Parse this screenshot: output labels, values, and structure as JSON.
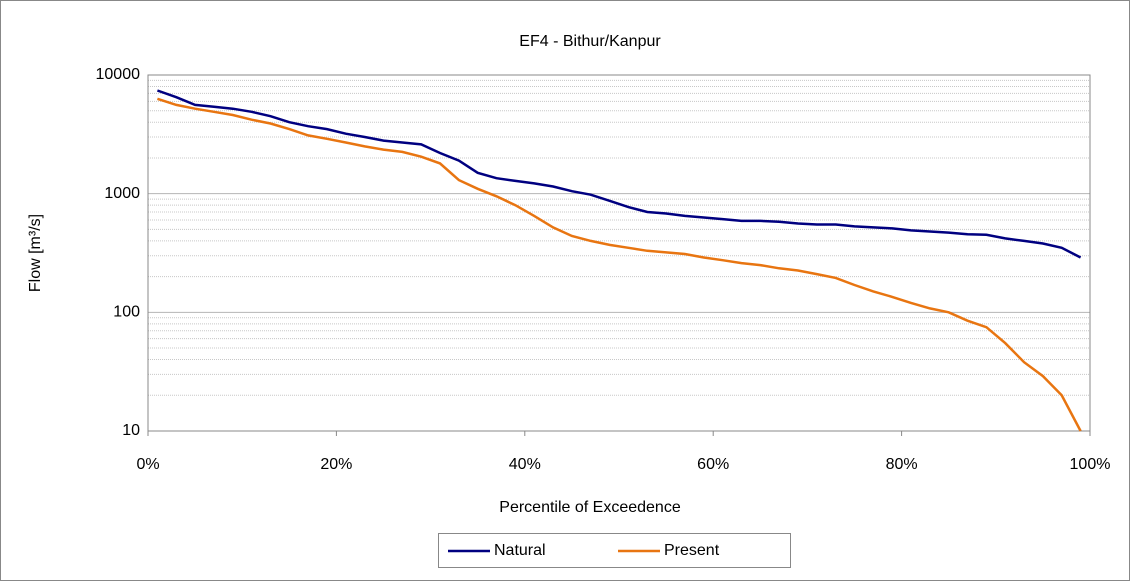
{
  "chart_data": {
    "type": "line",
    "title": "EF4 - Bithur/Kanpur",
    "x_label": "Percentile of Exceedence",
    "y_label": "Flow [m³/s]",
    "x": [
      1,
      3,
      5,
      7,
      9,
      11,
      13,
      15,
      17,
      19,
      21,
      23,
      25,
      27,
      29,
      31,
      33,
      35,
      37,
      39,
      41,
      43,
      45,
      47,
      49,
      51,
      53,
      55,
      57,
      59,
      61,
      63,
      65,
      67,
      69,
      71,
      73,
      75,
      77,
      79,
      81,
      83,
      85,
      87,
      89,
      91,
      93,
      95,
      97,
      99
    ],
    "series": [
      {
        "name": "Natural",
        "color": "#000080",
        "values": [
          7400,
          6500,
          5600,
          5400,
          5200,
          4900,
          4500,
          4000,
          3700,
          3500,
          3200,
          3000,
          2800,
          2700,
          2600,
          2200,
          1900,
          1500,
          1350,
          1280,
          1220,
          1150,
          1050,
          980,
          870,
          770,
          700,
          680,
          650,
          630,
          610,
          590,
          590,
          580,
          560,
          550,
          550,
          530,
          520,
          510,
          490,
          480,
          470,
          455,
          450,
          420,
          400,
          380,
          350,
          290
        ]
      },
      {
        "name": "Present",
        "color": "#e87511",
        "values": [
          6300,
          5600,
          5200,
          4900,
          4600,
          4200,
          3900,
          3500,
          3100,
          2900,
          2700,
          2500,
          2350,
          2250,
          2050,
          1800,
          1300,
          1100,
          950,
          800,
          650,
          520,
          440,
          400,
          370,
          350,
          330,
          320,
          310,
          290,
          275,
          260,
          250,
          235,
          225,
          210,
          195,
          170,
          150,
          135,
          120,
          108,
          100,
          85,
          75,
          55,
          38,
          29,
          20,
          10
        ]
      }
    ],
    "xlim": [
      0,
      100
    ],
    "xticks": [
      {
        "value": 0,
        "label": "0%"
      },
      {
        "value": 20,
        "label": "20%"
      },
      {
        "value": 40,
        "label": "40%"
      },
      {
        "value": 60,
        "label": "60%"
      },
      {
        "value": 80,
        "label": "80%"
      },
      {
        "value": 100,
        "label": "100%"
      }
    ],
    "ylim": [
      10,
      10000
    ],
    "yticks": [
      10,
      100,
      1000,
      10000
    ],
    "y_scale": "log",
    "grid": true,
    "minor_grid": true,
    "legend": "bottom"
  }
}
